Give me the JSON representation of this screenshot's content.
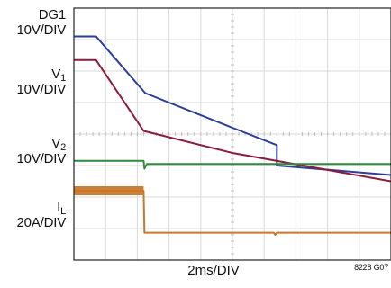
{
  "chart_data": {
    "type": "line",
    "title": "",
    "xlabel": "2ms/DIV",
    "figure_id": "8228 G07",
    "grid": true,
    "xlim": [
      0,
      20
    ],
    "ylim": [
      0,
      8
    ],
    "channel_labels": [
      {
        "name": "DG1",
        "scale": "10V/DIV"
      },
      {
        "name": "V",
        "sub": "1",
        "scale": "10V/DIV"
      },
      {
        "name": "V",
        "sub": "2",
        "scale": "10V/DIV"
      },
      {
        "name": "I",
        "sub": "L",
        "scale": "20A/DIV"
      }
    ],
    "series": [
      {
        "name": "DG1",
        "color": "#2b3f98",
        "points": [
          [
            0,
            7.1
          ],
          [
            1.4,
            7.1
          ],
          [
            4.5,
            5.3
          ],
          [
            10,
            4.2
          ],
          [
            12.8,
            3.65
          ],
          [
            12.8,
            3.0
          ],
          [
            20,
            2.7
          ]
        ]
      },
      {
        "name": "V1",
        "color": "#8b1c3b",
        "points": [
          [
            0,
            6.35
          ],
          [
            1.4,
            6.35
          ],
          [
            4.4,
            4.1
          ],
          [
            10,
            3.4
          ],
          [
            20,
            2.5
          ]
        ]
      },
      {
        "name": "V2",
        "color": "#2e8b3e",
        "points": [
          [
            0,
            3.15
          ],
          [
            4.4,
            3.15
          ],
          [
            4.45,
            2.9
          ],
          [
            4.6,
            3.05
          ],
          [
            20,
            3.05
          ]
        ]
      },
      {
        "name": "IL",
        "color": "#c8782c",
        "points": [
          [
            0,
            2.2
          ],
          [
            4.4,
            2.2
          ],
          [
            4.45,
            0.87
          ],
          [
            12.6,
            0.87
          ],
          [
            12.7,
            0.8
          ],
          [
            12.8,
            0.87
          ],
          [
            16,
            0.87
          ],
          [
            20,
            0.87
          ]
        ]
      }
    ]
  }
}
